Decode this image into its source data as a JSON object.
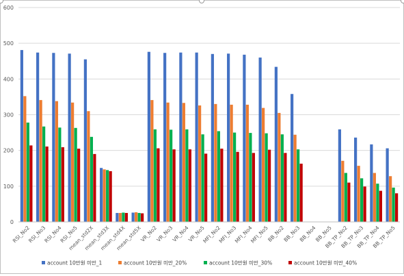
{
  "chart_data": {
    "type": "bar",
    "categories": [
      "RSI_No2",
      "RSI_No3",
      "RSI_No4",
      "RSI_No5",
      "mean_std2X",
      "mean_std3X",
      "mean_std4X",
      "mean_std5X",
      "VR_No2",
      "VR_No3",
      "VR_No4",
      "VR_No5",
      "MFI_No2",
      "MFI_No3",
      "MFI_No4",
      "MFI_No5",
      "BB_No2",
      "BB_No3",
      "BB_No4",
      "BB_No5",
      "BB_TP_No2",
      "BB_TP_No3",
      "BB_TP_No4",
      "BB_TP_No5"
    ],
    "series": [
      {
        "name": "account 10만원 미만_1",
        "color": "#4472C4",
        "values": [
          481,
          474,
          473,
          471,
          455,
          151,
          25,
          26,
          476,
          473,
          474,
          474,
          470,
          471,
          468,
          460,
          434,
          358,
          0,
          0,
          259,
          236,
          217,
          206
        ]
      },
      {
        "name": "account 10만원 미만_20%",
        "color": "#ED7D31",
        "values": [
          352,
          341,
          338,
          334,
          310,
          147,
          25,
          27,
          341,
          334,
          333,
          326,
          330,
          328,
          328,
          319,
          305,
          244,
          0,
          0,
          171,
          157,
          137,
          128
        ]
      },
      {
        "name": "account 10만원 미만_30%",
        "color": "#00B050",
        "values": [
          278,
          267,
          264,
          263,
          238,
          145,
          26,
          25,
          259,
          258,
          259,
          245,
          254,
          250,
          249,
          248,
          245,
          203,
          0,
          0,
          137,
          122,
          107,
          96
        ]
      },
      {
        "name": "account 10만원 미만_40%",
        "color": "#C00000",
        "values": [
          214,
          211,
          209,
          205,
          190,
          142,
          25,
          24,
          206,
          203,
          203,
          191,
          205,
          196,
          193,
          202,
          193,
          163,
          0,
          0,
          110,
          99,
          87,
          80
        ]
      }
    ],
    "yticks": [
      "0",
      "100",
      "200",
      "300",
      "400",
      "500",
      "600"
    ],
    "ylim": [
      0,
      600
    ],
    "grid": true,
    "legend": "bottom"
  }
}
